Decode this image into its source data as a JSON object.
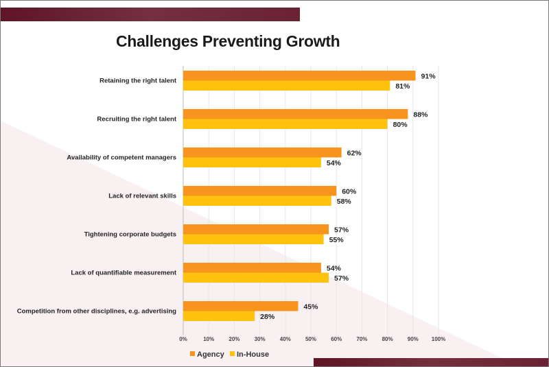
{
  "chart_data": {
    "type": "bar",
    "orientation": "horizontal",
    "title": "Challenges Preventing Growth",
    "categories": [
      "Retaining the right talent",
      "Recruiting the right talent",
      "Availability of competent managers",
      "Lack of relevant skills",
      "Tightening corporate budgets",
      "Lack of quantifiable measurement",
      "Competition from other disciplines, e.g. advertising"
    ],
    "series": [
      {
        "name": "Agency",
        "color": "#f7941d",
        "values": [
          91,
          88,
          62,
          60,
          57,
          54,
          45
        ]
      },
      {
        "name": "In-House",
        "color": "#ffc20e",
        "values": [
          81,
          80,
          54,
          58,
          55,
          57,
          28
        ]
      }
    ],
    "xlim": [
      0,
      100
    ],
    "xticks": [
      "0%",
      "10%",
      "20%",
      "30%",
      "40%",
      "50%",
      "60%",
      "70%",
      "80%",
      "90%",
      "100%"
    ],
    "value_suffix": "%",
    "grid": true,
    "legend": "bottom-left"
  }
}
